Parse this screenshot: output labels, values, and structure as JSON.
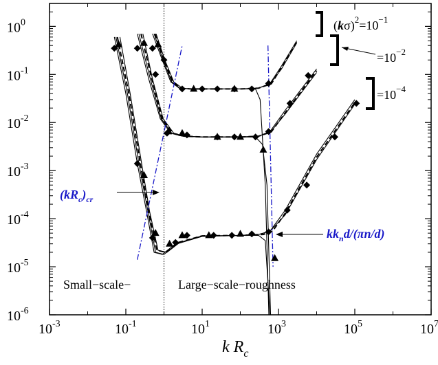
{
  "chart_data": {
    "type": "line",
    "title": "",
    "xlabel": {
      "main": "k R",
      "sub": "c"
    },
    "ylabel": "",
    "xscale": "log",
    "yscale": "log",
    "xlim": [
      0.001,
      10000000
    ],
    "ylim": [
      1e-06,
      3
    ],
    "xticks": [
      {
        "value": 0.001,
        "base": "10",
        "exp": "-3"
      },
      {
        "value": 0.1,
        "base": "10",
        "exp": "-1"
      },
      {
        "value": 10,
        "base": "10",
        "exp": "1"
      },
      {
        "value": 1000,
        "base": "10",
        "exp": "3"
      },
      {
        "value": 100000,
        "base": "10",
        "exp": "5"
      },
      {
        "value": 10000000,
        "base": "10",
        "exp": "7"
      }
    ],
    "yticks": [
      {
        "value": 1,
        "base": "10",
        "exp": "0"
      },
      {
        "value": 0.1,
        "base": "10",
        "exp": "-1"
      },
      {
        "value": 0.01,
        "base": "10",
        "exp": "-2"
      },
      {
        "value": 0.001,
        "base": "10",
        "exp": "-3"
      },
      {
        "value": 0.0001,
        "base": "10",
        "exp": "-4"
      },
      {
        "value": 1e-05,
        "base": "10",
        "exp": "-5"
      },
      {
        "value": 1e-06,
        "base": "10",
        "exp": "-6"
      }
    ],
    "grid": false,
    "divider_x": 1,
    "region_labels": {
      "small": "Small−scale−",
      "large": "Large−scale−roughness"
    },
    "param_labels": {
      "first": {
        "prefix": "(",
        "bold": "k",
        "sym": "σ)",
        "sup": "2",
        "rest": "=10",
        "exp": "−1"
      },
      "second": {
        "rest": "=10",
        "exp": "−2"
      },
      "third": {
        "rest": "=10",
        "exp": "−4"
      }
    },
    "annotations": {
      "kRc_cr": {
        "open": "(",
        "main": "kR",
        "sub": "c",
        "close": ")",
        "sub2": "cr"
      },
      "kkn": {
        "a": "kk",
        "sub": "n",
        "b": "d/(πn/d)"
      }
    },
    "colors": {
      "curves": "#000000",
      "annotation": "#1818c8"
    },
    "series": [
      {
        "group": "1e-4",
        "kind": "diamond-markers",
        "x": [
          0.05,
          0.2,
          0.5,
          2,
          4,
          20,
          60,
          200,
          550,
          1700,
          5500,
          30000,
          110000
        ],
        "y": [
          0.35,
          0.0014,
          4e-05,
          3.2e-05,
          4.5e-05,
          4.5e-05,
          4.5e-05,
          4.8e-05,
          5.3e-05,
          0.00015,
          0.0005,
          0.005,
          0.025
        ]
      },
      {
        "group": "1e-4",
        "kind": "triangle-markers",
        "x": [
          0.065,
          0.3,
          0.6,
          1.4,
          3,
          15,
          100,
          400,
          800
        ],
        "y": [
          0.42,
          0.0008,
          5e-05,
          3e-05,
          4.5e-05,
          4.5e-05,
          4.8e-05,
          0.0027,
          1.5e-05
        ]
      },
      {
        "group": "1e-2",
        "kind": "diamond-markers",
        "x": [
          0.2,
          0.6,
          1.2,
          4,
          25,
          70,
          250,
          550,
          2000,
          6000
        ],
        "y": [
          0.35,
          0.1,
          0.006,
          0.0055,
          0.005,
          0.005,
          0.005,
          0.0065,
          0.025,
          0.095
        ]
      },
      {
        "group": "1e-2",
        "kind": "triangle-markers",
        "x": [
          0.3,
          1.3,
          3,
          25,
          100
        ],
        "y": [
          0.45,
          0.0065,
          0.006,
          0.005,
          0.005
        ]
      },
      {
        "group": "1e-1",
        "kind": "diamond-markers",
        "x": [
          0.5,
          1,
          3,
          10,
          25,
          70,
          200,
          550
        ],
        "y": [
          0.35,
          0.2,
          0.05,
          0.05,
          0.05,
          0.05,
          0.05,
          0.065
        ]
      },
      {
        "group": "1e-1",
        "kind": "triangle-markers",
        "x": [
          0.7,
          6,
          70
        ],
        "y": [
          0.42,
          0.05,
          0.05
        ]
      },
      {
        "group": "1e-4",
        "kind": "solid-line",
        "x": [
          0.05,
          0.1,
          0.2,
          0.35,
          0.55,
          0.9,
          2,
          10,
          100,
          300,
          600,
          1500,
          10000,
          100000
        ],
        "y": [
          0.6,
          0.04,
          0.0014,
          0.00014,
          2e-05,
          1.8e-05,
          3e-05,
          4.3e-05,
          4.5e-05,
          4.7e-05,
          5.5e-05,
          0.00015,
          0.0022,
          0.03
        ]
      },
      {
        "group": "1e-4",
        "kind": "solid-line",
        "x": [
          0.055,
          0.11,
          0.22,
          0.38,
          0.6,
          1,
          2.2,
          10,
          100,
          300,
          600,
          1500,
          10000,
          100000
        ],
        "y": [
          0.6,
          0.04,
          0.0014,
          0.00014,
          2e-05,
          1.8e-05,
          3e-05,
          4.3e-05,
          4.5e-05,
          4.7e-05,
          5.5e-05,
          0.00012,
          0.0017,
          0.024
        ]
      },
      {
        "group": "1e-4",
        "kind": "dashed-line",
        "x": [
          0.06,
          0.12,
          0.24,
          0.4,
          0.65,
          1.1,
          2.4,
          10,
          100,
          400,
          700,
          1500,
          10000,
          100000
        ],
        "y": [
          0.6,
          0.04,
          0.0014,
          0.00014,
          2.2e-05,
          2e-05,
          3.2e-05,
          4.4e-05,
          4.5e-05,
          4.7e-05,
          5.5e-05,
          0.00013,
          0.0019,
          0.026
        ]
      },
      {
        "group": "1e-4",
        "kind": "solid-line",
        "x": [
          0.07,
          0.13,
          0.26,
          0.42,
          0.7,
          1.2,
          2.6,
          10,
          100,
          300,
          450,
          600
        ],
        "y": [
          0.6,
          0.04,
          0.0014,
          0.00014,
          2.2e-05,
          2e-05,
          3.2e-05,
          4.4e-05,
          4.5e-05,
          4.5e-05,
          3.5e-05,
          1e-06
        ]
      },
      {
        "group": "1e-2",
        "kind": "solid-line",
        "x": [
          0.2,
          0.4,
          0.8,
          1.5,
          3,
          10,
          100,
          300,
          600,
          1500,
          10000
        ],
        "y": [
          0.7,
          0.08,
          0.012,
          0.006,
          0.0052,
          0.005,
          0.005,
          0.0052,
          0.0065,
          0.018,
          0.13
        ]
      },
      {
        "group": "1e-2",
        "kind": "solid-line",
        "x": [
          0.22,
          0.44,
          0.85,
          1.6,
          3.2,
          10,
          100,
          300,
          600,
          1500,
          10000
        ],
        "y": [
          0.7,
          0.08,
          0.012,
          0.006,
          0.0052,
          0.005,
          0.005,
          0.0052,
          0.0062,
          0.015,
          0.11
        ]
      },
      {
        "group": "1e-2",
        "kind": "dashed-line",
        "x": [
          0.25,
          0.48,
          0.9,
          1.7,
          3.4,
          10,
          100,
          300,
          650,
          1500,
          10000
        ],
        "y": [
          0.7,
          0.08,
          0.012,
          0.006,
          0.0052,
          0.005,
          0.005,
          0.0052,
          0.0064,
          0.016,
          0.12
        ]
      },
      {
        "group": "1e-2",
        "kind": "solid-line",
        "x": [
          0.28,
          0.5,
          0.95,
          1.8,
          3.6,
          10,
          100,
          250,
          380,
          500,
          620
        ],
        "y": [
          0.7,
          0.08,
          0.012,
          0.006,
          0.0052,
          0.005,
          0.005,
          0.005,
          0.0035,
          0.0005,
          1e-06
        ]
      },
      {
        "group": "1e-1",
        "kind": "solid-line",
        "x": [
          0.5,
          0.9,
          1.5,
          2.5,
          5,
          10,
          100,
          300,
          600,
          1200,
          3000
        ],
        "y": [
          0.7,
          0.2,
          0.07,
          0.052,
          0.05,
          0.05,
          0.05,
          0.052,
          0.065,
          0.15,
          0.5
        ]
      },
      {
        "group": "1e-1",
        "kind": "solid-line",
        "x": [
          0.55,
          0.95,
          1.6,
          2.6,
          5,
          10,
          100,
          300,
          600,
          1200,
          3000
        ],
        "y": [
          0.7,
          0.2,
          0.07,
          0.052,
          0.05,
          0.05,
          0.05,
          0.052,
          0.063,
          0.13,
          0.45
        ]
      },
      {
        "group": "1e-1",
        "kind": "dashed-line",
        "x": [
          0.58,
          1,
          1.7,
          2.8,
          5,
          10,
          100,
          300,
          650,
          1200,
          3000
        ],
        "y": [
          0.7,
          0.2,
          0.07,
          0.052,
          0.05,
          0.05,
          0.05,
          0.052,
          0.064,
          0.14,
          0.48
        ]
      },
      {
        "group": "1e-1",
        "kind": "solid-line",
        "x": [
          0.62,
          1.05,
          1.8,
          3,
          5,
          10,
          100,
          250,
          330,
          450,
          560
        ],
        "y": [
          0.7,
          0.2,
          0.07,
          0.052,
          0.05,
          0.05,
          0.05,
          0.05,
          0.03,
          0.0005,
          1e-06
        ]
      },
      {
        "group": "kRc_cr",
        "kind": "blue-dashdot",
        "x": [
          0.2,
          3
        ],
        "y": [
          1.4e-05,
          0.4
        ]
      },
      {
        "group": "kkn",
        "kind": "blue-dashdot",
        "x": [
          530,
          720
        ],
        "y": [
          0.4,
          1e-05
        ]
      }
    ]
  }
}
